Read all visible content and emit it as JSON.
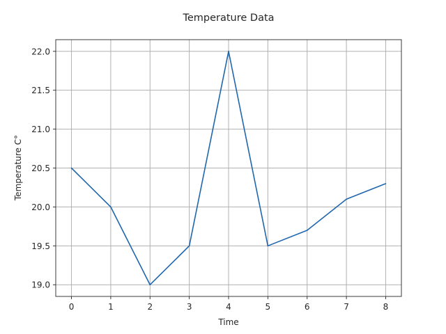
{
  "chart_data": {
    "type": "line",
    "title": "Temperature Data",
    "xlabel": "Time",
    "ylabel": "Temperature C°",
    "x": [
      0,
      1,
      2,
      3,
      4,
      5,
      6,
      7,
      8
    ],
    "series": [
      {
        "values": [
          20.5,
          20.0,
          19.0,
          19.5,
          22.0,
          19.5,
          19.7,
          20.1,
          20.3
        ],
        "color": "#1f66ad"
      }
    ],
    "xlim": [
      -0.4,
      8.4
    ],
    "ylim": [
      18.85,
      22.15
    ],
    "xticks": [
      0,
      1,
      2,
      3,
      4,
      5,
      6,
      7,
      8
    ],
    "yticks": [
      19.0,
      19.5,
      20.0,
      20.5,
      21.0,
      21.5,
      22.0
    ],
    "grid": true,
    "legend": "none"
  }
}
